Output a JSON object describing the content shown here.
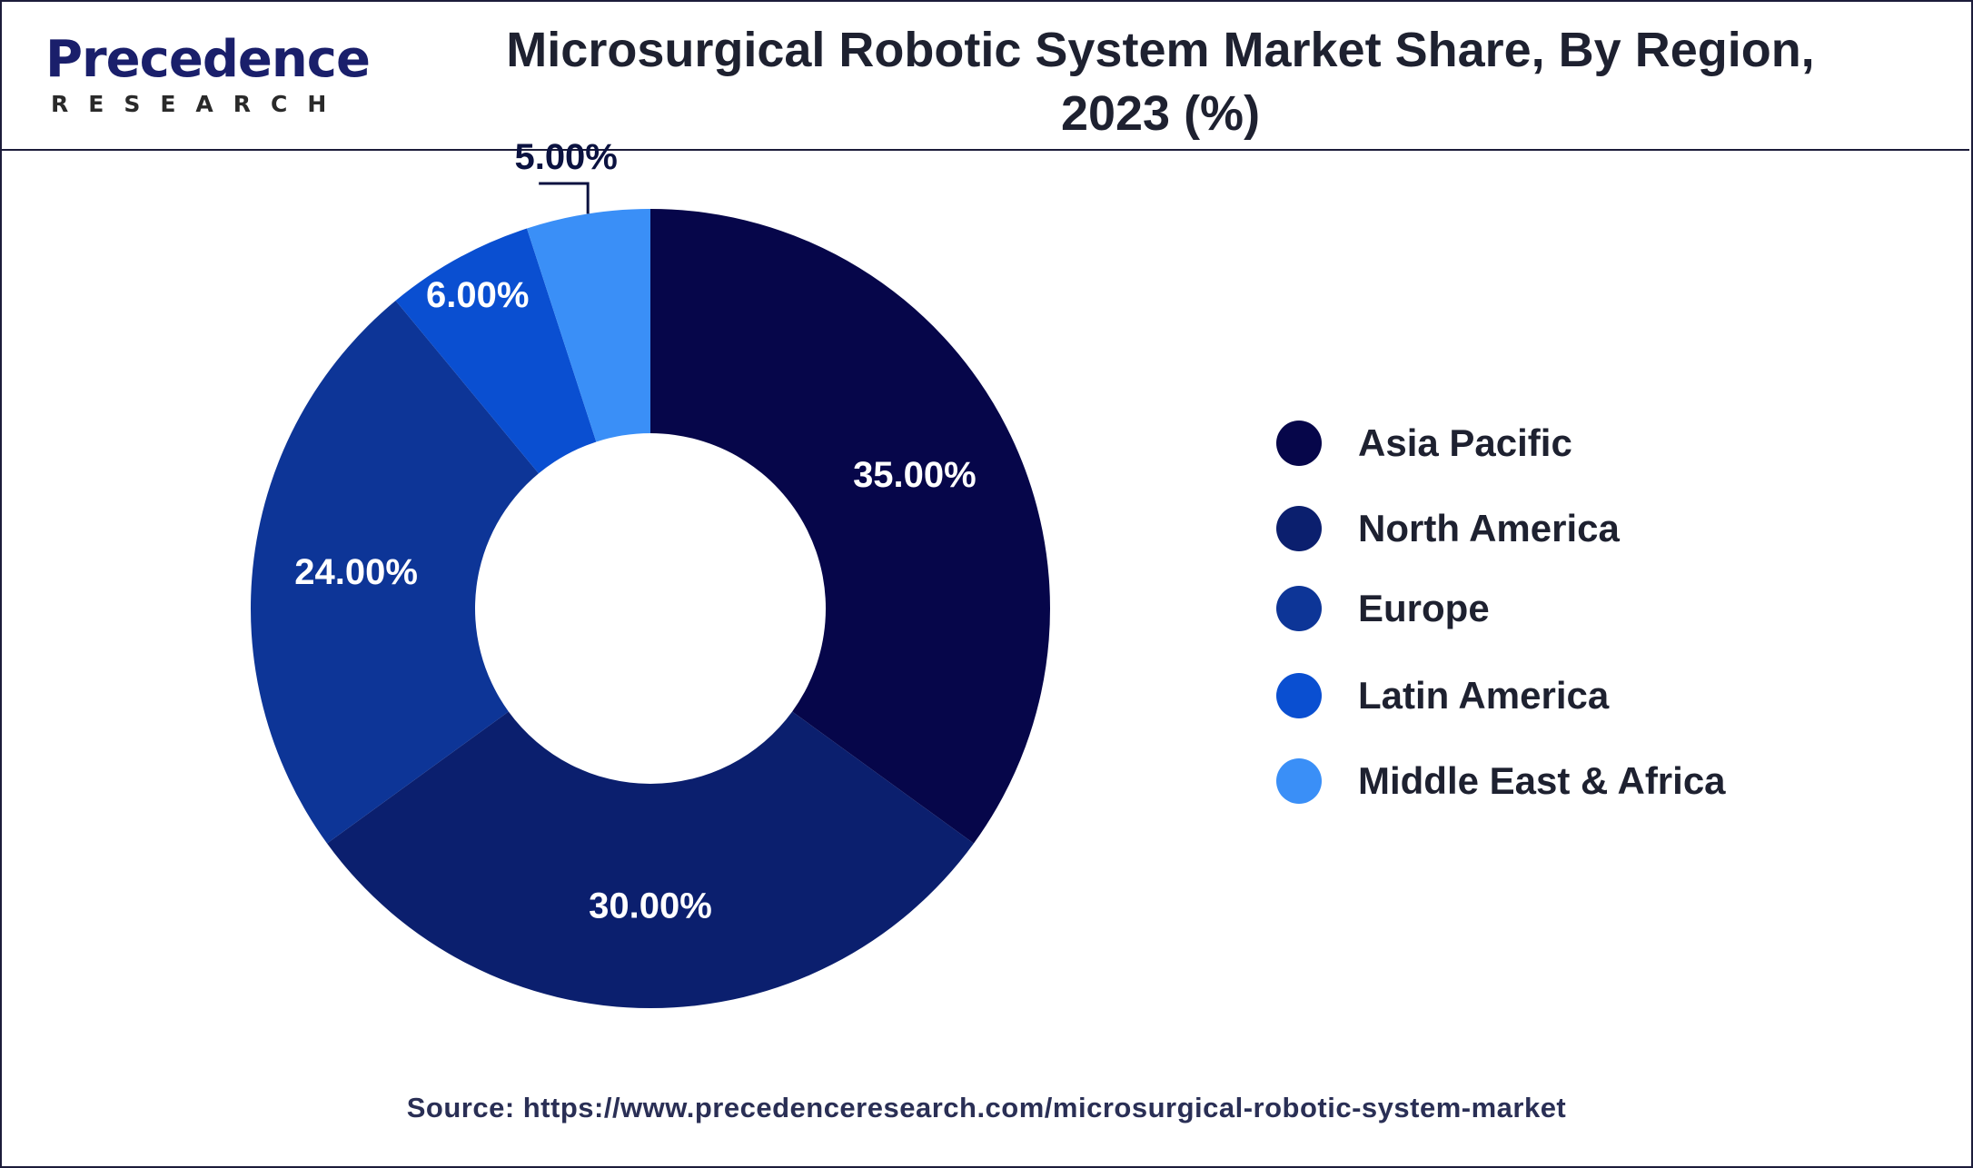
{
  "brand": {
    "name": "Precedence",
    "sub": "RESEARCH"
  },
  "title_line1": "Microsurgical Robotic System Market Share, By Region,",
  "title_line2": "2023 (%)",
  "source": "Source: https://www.precedenceresearch.com/microsurgical-robotic-system-market",
  "chart_data": {
    "type": "pie",
    "style": "donut",
    "title": "Microsurgical Robotic System Market Share, By Region, 2023 (%)",
    "unit": "%",
    "legend_position": "right",
    "categories": [
      "Asia Pacific",
      "North America",
      "Europe",
      "Latin America",
      "Middle East & Africa"
    ],
    "values": [
      35,
      30,
      24,
      6,
      5
    ],
    "labels": [
      "35.00%",
      "30.00%",
      "24.00%",
      "6.00%",
      "5.00%"
    ],
    "colors": [
      "#06064a",
      "#0b1f6e",
      "#0d3597",
      "#0a4fd1",
      "#3a8ff7"
    ]
  }
}
